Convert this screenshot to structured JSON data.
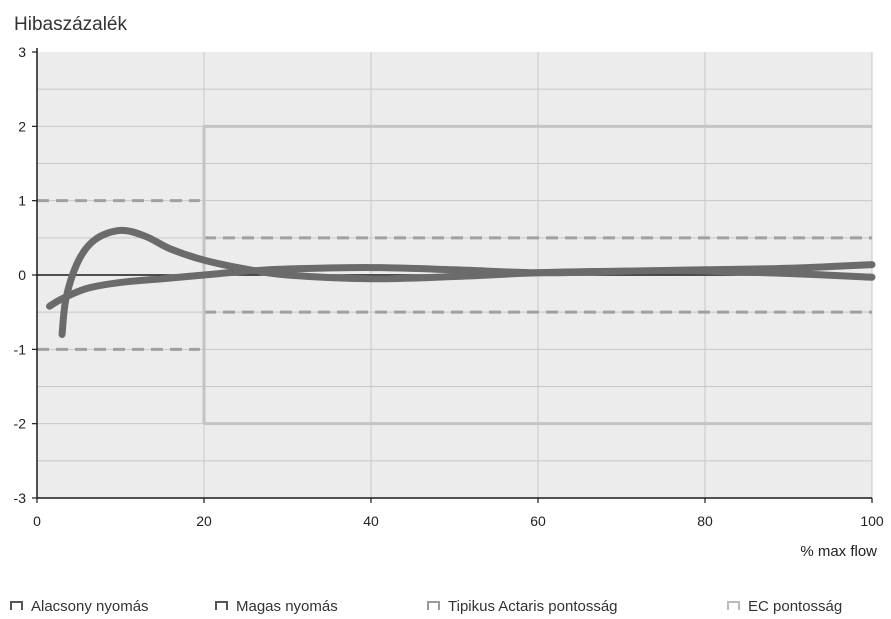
{
  "chart_data": {
    "type": "line",
    "ylabel": "Hibaszázalék",
    "xlabel": "% max flow",
    "xlim": [
      0,
      100
    ],
    "ylim": [
      -3,
      3
    ],
    "x_ticks": [
      "0",
      "20",
      "40",
      "60",
      "80",
      "100"
    ],
    "y_ticks": [
      "3",
      "2",
      "1",
      "0",
      "-1",
      "-2",
      "-3"
    ],
    "grid": true,
    "legend_position": "bottom",
    "series": [
      {
        "name": "Alacsony nyomás",
        "color": "#6b6b6b",
        "points": [
          [
            3,
            -0.8
          ],
          [
            3.5,
            -0.3
          ],
          [
            5,
            0.2
          ],
          [
            7,
            0.48
          ],
          [
            10,
            0.6
          ],
          [
            13,
            0.52
          ],
          [
            16,
            0.35
          ],
          [
            20,
            0.2
          ],
          [
            25,
            0.08
          ],
          [
            30,
            0.0
          ],
          [
            40,
            -0.05
          ],
          [
            50,
            -0.02
          ],
          [
            60,
            0.03
          ],
          [
            70,
            0.05
          ],
          [
            80,
            0.05
          ],
          [
            90,
            0.02
          ],
          [
            100,
            -0.03
          ]
        ]
      },
      {
        "name": "Magas nyomás",
        "color": "#6b6b6b",
        "points": [
          [
            1.5,
            -0.42
          ],
          [
            3,
            -0.32
          ],
          [
            6,
            -0.18
          ],
          [
            10,
            -0.1
          ],
          [
            15,
            -0.05
          ],
          [
            20,
            0.0
          ],
          [
            25,
            0.05
          ],
          [
            30,
            0.08
          ],
          [
            40,
            0.1
          ],
          [
            50,
            0.07
          ],
          [
            60,
            0.03
          ],
          [
            70,
            0.05
          ],
          [
            80,
            0.07
          ],
          [
            90,
            0.09
          ],
          [
            100,
            0.14
          ]
        ]
      },
      {
        "name": "Tipikus Actaris pontosság",
        "color": "#a0a0a0",
        "style": "dashed",
        "segments": [
          [
            [
              0,
              1
            ],
            [
              19.5,
              1
            ]
          ],
          [
            [
              0,
              -1
            ],
            [
              19.5,
              -1
            ]
          ],
          [
            [
              20,
              0.5
            ],
            [
              100,
              0.5
            ]
          ],
          [
            [
              20,
              -0.5
            ],
            [
              100,
              -0.5
            ]
          ]
        ]
      },
      {
        "name": "EC pontosság",
        "color": "#c4c4c4",
        "segments": [
          [
            [
              20,
              2
            ],
            [
              100,
              2
            ]
          ],
          [
            [
              20,
              -2
            ],
            [
              100,
              -2
            ]
          ],
          [
            [
              20,
              2
            ],
            [
              20,
              -2
            ]
          ]
        ]
      }
    ]
  }
}
